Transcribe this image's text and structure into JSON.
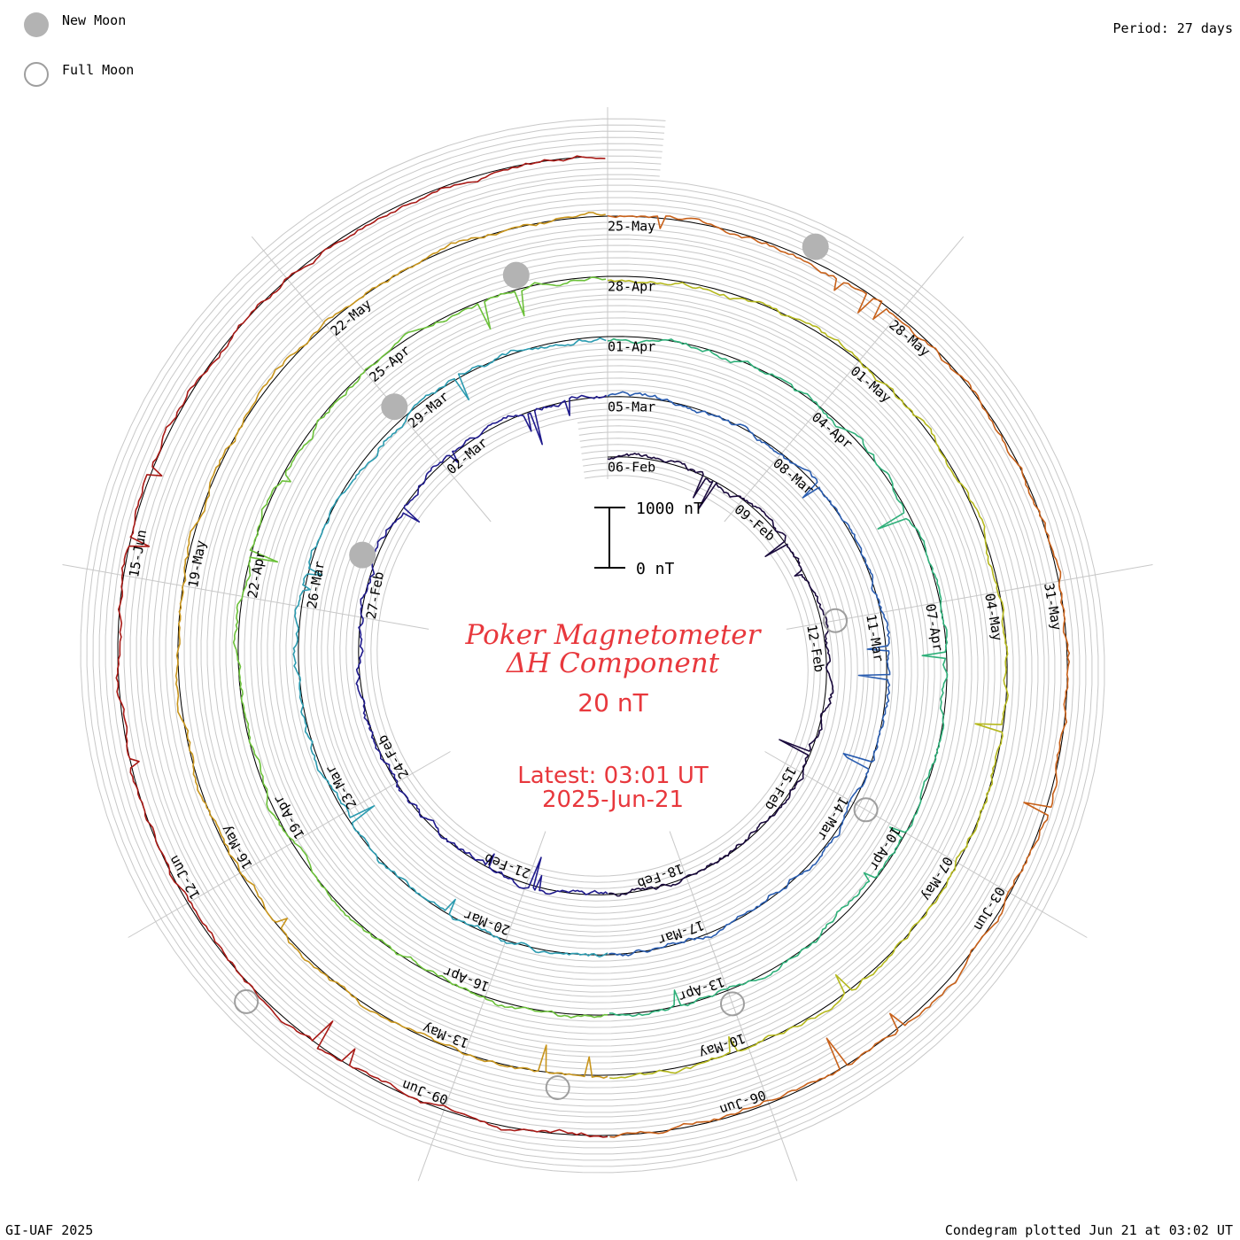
{
  "legend": {
    "new_moon_label": "New Moon",
    "full_moon_label": "Full Moon",
    "new_moon_color": "#b3b3b3",
    "full_moon_color": "#9e9e9e"
  },
  "header": {
    "period": "Period: 27 days"
  },
  "center": {
    "title_line1": "Poker Magnetometer",
    "title_line2": "ΔH Component",
    "scale_label": "20 nT",
    "latest_label": "Latest: 03:01 UT",
    "latest_date": "2025-Jun-21",
    "text_color": "#e8383d"
  },
  "scale_bar": {
    "top_label": "1000 nT",
    "bottom_label": "0 nT"
  },
  "footer": {
    "credit": "GI-UAF 2025",
    "plotted": "Condegram plotted Jun 21 at 03:02 UT"
  },
  "chart_data": {
    "type": "line",
    "subtype": "condegram-spiral",
    "period_days": 27,
    "start_date": "2025-Feb-06",
    "end_date": "2025-Jun-21",
    "date_labels": [
      "06-Feb",
      "09-Feb",
      "12-Feb",
      "15-Feb",
      "18-Feb",
      "21-Feb",
      "24-Feb",
      "27-Feb",
      "02-Mar",
      "05-Mar",
      "08-Mar",
      "11-Mar",
      "14-Mar",
      "17-Mar",
      "20-Mar",
      "23-Mar",
      "26-Mar",
      "29-Mar",
      "01-Apr",
      "04-Apr",
      "07-Apr",
      "10-Apr",
      "13-Apr",
      "16-Apr",
      "19-Apr",
      "22-Apr",
      "25-Apr",
      "28-Apr",
      "01-May",
      "04-May",
      "07-May",
      "10-May",
      "13-May",
      "16-May",
      "19-May",
      "22-May",
      "25-May",
      "28-May",
      "31-May",
      "03-Jun",
      "06-Jun",
      "09-Jun",
      "12-Jun",
      "15-Jun"
    ],
    "new_moon_dates": [
      "2025-Feb-28",
      "2025-Mar-29",
      "2025-Apr-27",
      "2025-May-27"
    ],
    "full_moon_dates": [
      "2025-Feb-12",
      "2025-Mar-14",
      "2025-Apr-13",
      "2025-May-12",
      "2025-Jun-11"
    ],
    "colors": [
      "#1a0a3d",
      "#1f1a8c",
      "#2a5db0",
      "#2b9bb0",
      "#2fb07a",
      "#6cc13a",
      "#b5b81d",
      "#c8951c",
      "#c8611a",
      "#a81a16"
    ],
    "grid": true
  }
}
